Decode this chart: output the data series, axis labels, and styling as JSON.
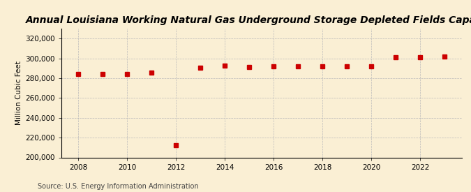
{
  "title": "Annual Louisiana Working Natural Gas Underground Storage Depleted Fields Capacity",
  "ylabel": "Million Cubic Feet",
  "source": "Source: U.S. Energy Information Administration",
  "years": [
    2008,
    2009,
    2010,
    2011,
    2012,
    2013,
    2014,
    2015,
    2016,
    2017,
    2018,
    2019,
    2020,
    2021,
    2022,
    2023
  ],
  "values": [
    284000,
    284500,
    284000,
    286000,
    212000,
    291000,
    292500,
    291500,
    292000,
    292000,
    292000,
    292000,
    292000,
    301000,
    301000,
    302000
  ],
  "marker_color": "#cc0000",
  "marker": "s",
  "marker_size": 4,
  "ylim": [
    200000,
    330000
  ],
  "yticks": [
    200000,
    220000,
    240000,
    260000,
    280000,
    300000,
    320000
  ],
  "xticks": [
    2008,
    2010,
    2012,
    2014,
    2016,
    2018,
    2020,
    2022
  ],
  "xlim": [
    2007.3,
    2023.7
  ],
  "background_color": "#faefd4",
  "grid_color": "#bbbbbb",
  "title_fontsize": 10,
  "label_fontsize": 7.5,
  "tick_fontsize": 7.5,
  "source_fontsize": 7
}
